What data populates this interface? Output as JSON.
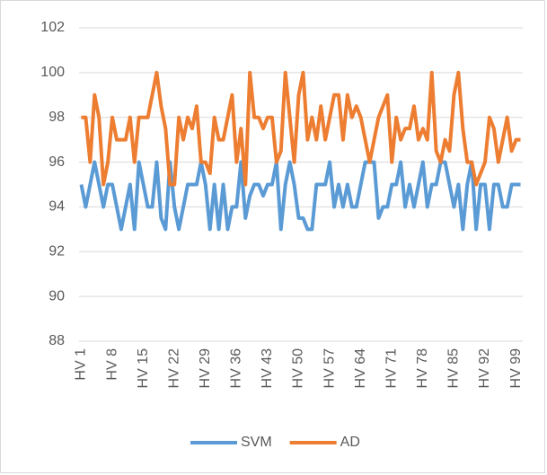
{
  "chart_data": {
    "type": "line",
    "categories": [
      "HV 1",
      null,
      null,
      null,
      null,
      null,
      null,
      "HV 8",
      null,
      null,
      null,
      null,
      null,
      null,
      "HV 15",
      null,
      null,
      null,
      null,
      null,
      null,
      "HV 22",
      null,
      null,
      null,
      null,
      null,
      null,
      "HV 29",
      null,
      null,
      null,
      null,
      null,
      null,
      "HV 36",
      null,
      null,
      null,
      null,
      null,
      null,
      "HV 43",
      null,
      null,
      null,
      null,
      null,
      null,
      "HV 50",
      null,
      null,
      null,
      null,
      null,
      null,
      "HV 57",
      null,
      null,
      null,
      null,
      null,
      null,
      "HV 64",
      null,
      null,
      null,
      null,
      null,
      null,
      "HV 71",
      null,
      null,
      null,
      null,
      null,
      null,
      "HV 78",
      null,
      null,
      null,
      null,
      null,
      null,
      "HV 85",
      null,
      null,
      null,
      null,
      null,
      null,
      "HV 92",
      null,
      null,
      null,
      null,
      null,
      null,
      "HV 99",
      null
    ],
    "series": [
      {
        "name": "SVM",
        "color": "#5b9bd5",
        "values": [
          95,
          94,
          95,
          96,
          95,
          94,
          95,
          95,
          94,
          93,
          94,
          95,
          93,
          96,
          95,
          94,
          94,
          96,
          93.5,
          93,
          96,
          94,
          93,
          94,
          95,
          95,
          95,
          96,
          95,
          93,
          95,
          93,
          95,
          93,
          94,
          94,
          96,
          93.5,
          94.5,
          95,
          95,
          94.5,
          95,
          95,
          96,
          93,
          95,
          96,
          95,
          93.5,
          93.5,
          93,
          93,
          95,
          95,
          95,
          96,
          94,
          95,
          94,
          95,
          94,
          94,
          95,
          96,
          96,
          96,
          93.5,
          94,
          94,
          95,
          95,
          96,
          94,
          95,
          94,
          95,
          96,
          94,
          95,
          95,
          96,
          96,
          95,
          94,
          95,
          93,
          95,
          96,
          93,
          95,
          95,
          93,
          95,
          95,
          94,
          94,
          95,
          95,
          95
        ]
      },
      {
        "name": "AD",
        "color": "#ed7d31",
        "values": [
          98,
          98,
          96,
          99,
          98,
          95,
          96,
          98,
          97,
          97,
          97,
          98,
          96,
          98,
          98,
          98,
          99,
          100,
          98.5,
          97.5,
          95,
          95,
          98,
          97,
          98,
          97.5,
          98.5,
          96,
          96,
          95.5,
          98,
          97,
          97,
          98,
          99,
          96,
          97.5,
          95,
          100,
          98,
          98,
          97.5,
          98,
          98,
          96,
          96.5,
          100,
          98,
          96,
          99,
          100,
          97,
          98,
          97,
          98.5,
          97,
          98,
          99,
          99,
          97,
          99,
          98,
          98.5,
          98,
          97,
          96,
          97,
          98,
          98.5,
          99,
          96,
          98,
          97,
          97.5,
          97.5,
          98.5,
          97,
          97.5,
          97,
          100,
          96.5,
          96,
          97,
          96.5,
          99,
          100,
          97.5,
          96,
          96,
          95,
          95.5,
          96,
          98,
          97.5,
          96,
          97,
          98,
          96.5,
          97,
          97
        ]
      }
    ],
    "ylim": [
      88,
      102
    ],
    "yticks": [
      88,
      90,
      92,
      94,
      96,
      98,
      100,
      102
    ],
    "grid": true,
    "legend": "bottom"
  }
}
